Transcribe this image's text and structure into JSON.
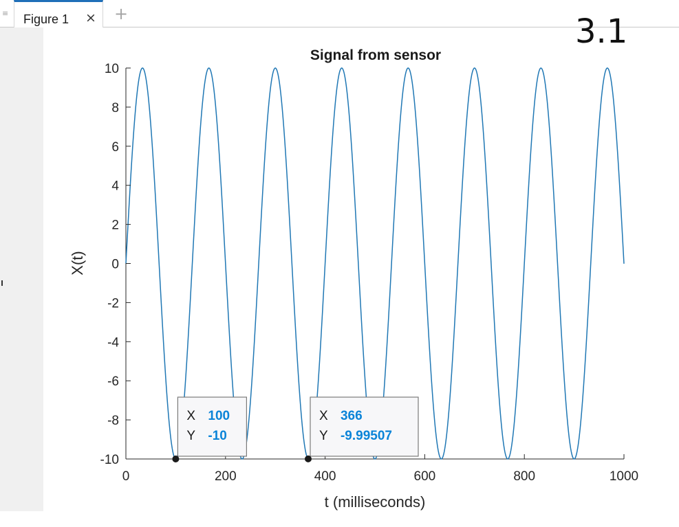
{
  "tabbar": {
    "tab_label": "Figure 1",
    "close_glyph": "×",
    "add_glyph": "+",
    "menu_icon": "grip-icon"
  },
  "annotation": {
    "text": "3.1"
  },
  "chart_data": {
    "type": "line",
    "title": "Signal from sensor",
    "xlabel": "t (milliseconds)",
    "ylabel": "X(t)",
    "xlim": [
      0,
      1000
    ],
    "ylim": [
      -10,
      10
    ],
    "x_ticks": [
      0,
      200,
      400,
      600,
      800,
      1000
    ],
    "y_ticks": [
      -10,
      -8,
      -6,
      -4,
      -2,
      0,
      2,
      4,
      6,
      8,
      10
    ],
    "grid": false,
    "series": [
      {
        "amplitude": 10,
        "period_ms": 133.33,
        "phase": 0,
        "color": "#1f77b4",
        "x_start": 0,
        "x_end": 1000,
        "samples": 1001
      }
    ],
    "datatips": [
      {
        "x": 100,
        "y": -10,
        "x_label": "X",
        "y_label": "Y",
        "x_text": "100",
        "y_text": "-10"
      },
      {
        "x": 366,
        "y": -9.99507,
        "x_label": "X",
        "y_label": "Y",
        "x_text": "366",
        "y_text": "-9.99507"
      }
    ]
  }
}
